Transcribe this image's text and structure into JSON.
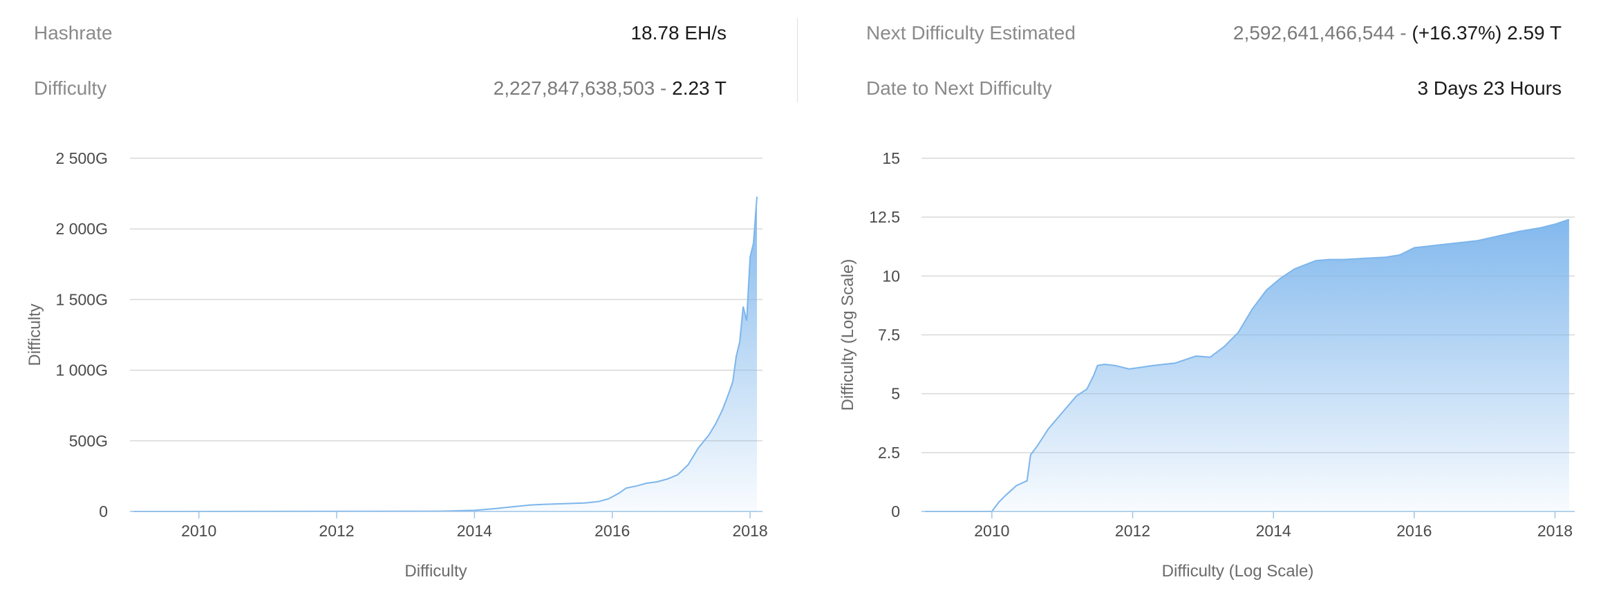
{
  "stats": {
    "hashrate": {
      "label": "Hashrate",
      "value": "18.78 EH/s"
    },
    "difficulty": {
      "label": "Difficulty",
      "value_full": "2,227,847,638,503",
      "value_sep": " - ",
      "value_short": "2.23 T"
    },
    "next_difficulty": {
      "label": "Next Difficulty Estimated",
      "value_full": "2,592,641,466,544",
      "value_sep": " - ",
      "value_short": "(+16.37%) 2.59 T"
    },
    "date_to_next": {
      "label": "Date to Next Difficulty",
      "value": "3 Days 23 Hours"
    }
  },
  "colors": {
    "line": "#7cb5ec",
    "grid": "#d8d8d8"
  },
  "chart_data": [
    {
      "type": "area",
      "title": "",
      "xlabel": "Difficulty",
      "ylabel": "Difficulty",
      "xlim": [
        2009.0,
        2018.18
      ],
      "ylim": [
        0,
        2500
      ],
      "x_ticks": [
        2010,
        2012,
        2014,
        2016,
        2018
      ],
      "x_tick_labels": [
        "2010",
        "2012",
        "2014",
        "2016",
        "2018"
      ],
      "y_ticks": [
        0,
        500,
        1000,
        1500,
        2000,
        2500
      ],
      "y_tick_labels": [
        "0",
        "500G",
        "1 000G",
        "1 500G",
        "2 000G",
        "2 500G"
      ],
      "grid": true,
      "series": [
        {
          "x": [
            2009.05,
            2013.5,
            2014.0,
            2014.3,
            2014.6,
            2014.8,
            2015.0,
            2015.3,
            2015.6,
            2015.8,
            2015.95,
            2016.1,
            2016.2,
            2016.35,
            2016.5,
            2016.65,
            2016.8,
            2016.95,
            2017.1,
            2017.25,
            2017.4,
            2017.5,
            2017.6,
            2017.7,
            2017.75,
            2017.8,
            2017.85,
            2017.9,
            2017.95,
            2018.0,
            2018.05,
            2018.08,
            2018.1
          ],
          "values": [
            0,
            2,
            8,
            20,
            35,
            45,
            50,
            55,
            60,
            70,
            90,
            130,
            165,
            180,
            200,
            210,
            230,
            260,
            330,
            450,
            540,
            620,
            720,
            850,
            920,
            1100,
            1200,
            1450,
            1350,
            1800,
            1900,
            2100,
            2228
          ]
        }
      ]
    },
    {
      "type": "area",
      "title": "",
      "xlabel": "Difficulty (Log Scale)",
      "ylabel": "Difficulty (Log Scale)",
      "xlim": [
        2009.0,
        2018.28
      ],
      "ylim": [
        0,
        15
      ],
      "x_ticks": [
        2010,
        2012,
        2014,
        2016,
        2018
      ],
      "x_tick_labels": [
        "2010",
        "2012",
        "2014",
        "2016",
        "2018"
      ],
      "y_ticks": [
        0,
        2.5,
        5,
        7.5,
        10,
        12.5,
        15
      ],
      "y_tick_labels": [
        "0",
        "2.5",
        "5",
        "7.5",
        "10",
        "12.5",
        "15"
      ],
      "grid": true,
      "series": [
        {
          "x": [
            2009.05,
            2010.0,
            2010.1,
            2010.2,
            2010.35,
            2010.5,
            2010.55,
            2010.65,
            2010.8,
            2011.0,
            2011.2,
            2011.35,
            2011.45,
            2011.5,
            2011.6,
            2011.75,
            2011.95,
            2012.3,
            2012.6,
            2012.9,
            2013.1,
            2013.3,
            2013.5,
            2013.7,
            2013.9,
            2014.1,
            2014.3,
            2014.6,
            2014.8,
            2015.0,
            2015.3,
            2015.6,
            2015.8,
            2016.0,
            2016.3,
            2016.6,
            2016.9,
            2017.2,
            2017.5,
            2017.8,
            2018.0,
            2018.1,
            2018.2
          ],
          "values": [
            0,
            0,
            0.4,
            0.7,
            1.1,
            1.3,
            2.4,
            2.8,
            3.5,
            4.2,
            4.9,
            5.2,
            5.8,
            6.2,
            6.25,
            6.2,
            6.05,
            6.2,
            6.3,
            6.6,
            6.55,
            7.0,
            7.6,
            8.6,
            9.4,
            9.9,
            10.3,
            10.65,
            10.7,
            10.7,
            10.75,
            10.8,
            10.9,
            11.2,
            11.3,
            11.4,
            11.5,
            11.7,
            11.9,
            12.05,
            12.2,
            12.3,
            12.4
          ]
        }
      ]
    }
  ]
}
